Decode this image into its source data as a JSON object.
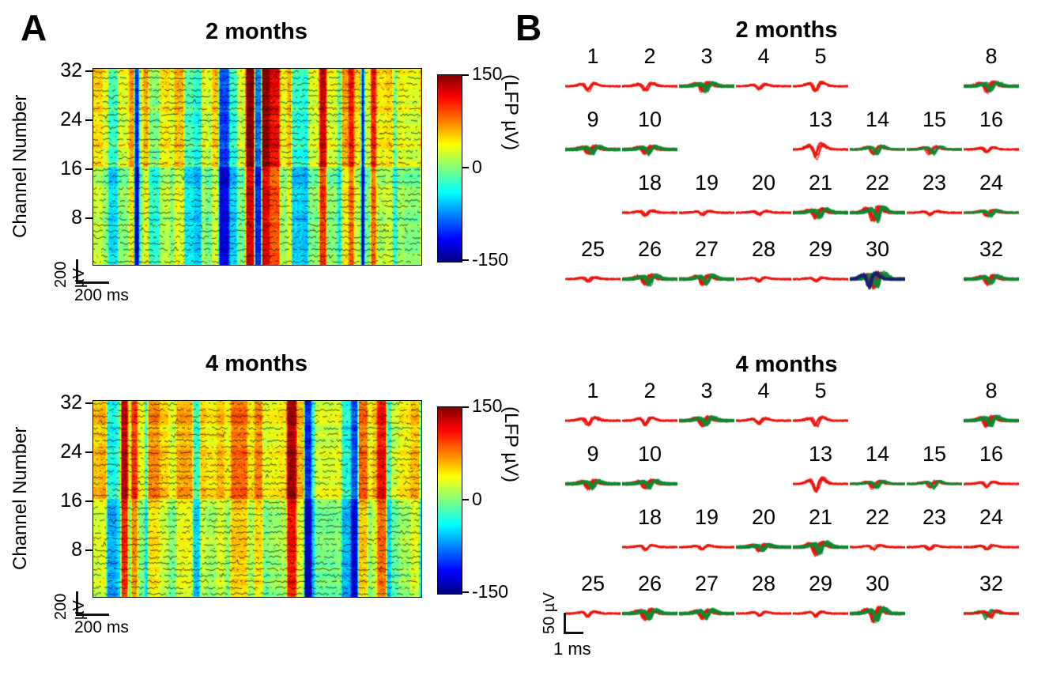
{
  "figure": {
    "panelA": {
      "label": "A",
      "ylabel": "Channel Number",
      "colorbar_label": "(LFP µV)",
      "scale_v": "200 µV",
      "scale_h": "200 ms",
      "plots": [
        {
          "title": "2 months",
          "yticks": [
            "32",
            "24",
            "16",
            "8"
          ],
          "colorbar_ticks": [
            "150",
            "0",
            "-150"
          ],
          "seed": 20
        },
        {
          "title": "4 months",
          "yticks": [
            "32",
            "24",
            "16",
            "8"
          ],
          "colorbar_ticks": [
            "150",
            "0",
            "-150"
          ],
          "seed": 77
        }
      ]
    },
    "panelB": {
      "label": "B",
      "scale_v": "50 µV",
      "scale_h": "1 ms",
      "groups": [
        {
          "title": "2 months",
          "rows": [
            [
              {
                "n": "1",
                "c": [
                  "red"
                ],
                "a": 0.95
              },
              {
                "n": "2",
                "c": [
                  "red"
                ],
                "a": 0.95
              },
              {
                "n": "3",
                "c": [
                  "red",
                  "green"
                ],
                "a": 1.0,
                "d": true
              },
              {
                "n": "4",
                "c": [
                  "red"
                ],
                "a": 0.7
              },
              {
                "n": "5",
                "c": [
                  "red"
                ],
                "a": 1.05
              },
              null,
              null,
              {
                "n": "8",
                "c": [
                  "red",
                  "green"
                ],
                "a": 1.1,
                "d": true
              }
            ],
            [
              {
                "n": "9",
                "c": [
                  "red",
                  "green"
                ],
                "a": 0.9,
                "d": true
              },
              {
                "n": "10",
                "c": [
                  "red",
                  "green"
                ],
                "a": 0.9,
                "d": true
              },
              null,
              null,
              {
                "n": "13",
                "c": [
                  "red"
                ],
                "a": 1.6
              },
              {
                "n": "14",
                "c": [
                  "red",
                  "green"
                ],
                "a": 1.0
              },
              {
                "n": "15",
                "c": [
                  "red",
                  "green"
                ],
                "a": 0.9
              },
              {
                "n": "16",
                "c": [
                  "red"
                ],
                "a": 0.6
              }
            ],
            [
              null,
              {
                "n": "18",
                "c": [
                  "red"
                ],
                "a": 0.6
              },
              {
                "n": "19",
                "c": [
                  "red"
                ],
                "a": 0.5
              },
              {
                "n": "20",
                "c": [
                  "red"
                ],
                "a": 0.5
              },
              {
                "n": "21",
                "c": [
                  "red",
                  "green"
                ],
                "a": 1.0,
                "d": true
              },
              {
                "n": "22",
                "c": [
                  "red",
                  "green"
                ],
                "a": 1.6,
                "d": true
              },
              {
                "n": "23",
                "c": [
                  "red"
                ],
                "a": 0.5
              },
              {
                "n": "24",
                "c": [
                  "red",
                  "green"
                ],
                "a": 0.8
              }
            ],
            [
              {
                "n": "25",
                "c": [
                  "red"
                ],
                "a": 0.5
              },
              {
                "n": "26",
                "c": [
                  "red",
                  "green"
                ],
                "a": 1.2,
                "d": true
              },
              {
                "n": "27",
                "c": [
                  "red",
                  "green"
                ],
                "a": 1.2,
                "d": true
              },
              {
                "n": "28",
                "c": [
                  "red"
                ],
                "a": 0.5
              },
              {
                "n": "29",
                "c": [
                  "red"
                ],
                "a": 0.5
              },
              {
                "n": "30",
                "c": [
                  "red",
                  "green",
                  "navy"
                ],
                "a": 1.7,
                "d": true
              },
              null,
              {
                "n": "32",
                "c": [
                  "red",
                  "green"
                ],
                "a": 1.0,
                "d": true
              }
            ]
          ]
        },
        {
          "title": "4 months",
          "rows": [
            [
              {
                "n": "1",
                "c": [
                  "red"
                ],
                "a": 0.95
              },
              {
                "n": "2",
                "c": [
                  "red"
                ],
                "a": 0.95
              },
              {
                "n": "3",
                "c": [
                  "red",
                  "green"
                ],
                "a": 1.0,
                "d": true
              },
              {
                "n": "4",
                "c": [
                  "red"
                ],
                "a": 0.7
              },
              {
                "n": "5",
                "c": [
                  "red"
                ],
                "a": 1.05
              },
              null,
              null,
              {
                "n": "8",
                "c": [
                  "red",
                  "green"
                ],
                "a": 1.15,
                "d": true
              }
            ],
            [
              {
                "n": "9",
                "c": [
                  "red",
                  "green"
                ],
                "a": 1.0,
                "d": true
              },
              {
                "n": "10",
                "c": [
                  "red",
                  "green"
                ],
                "a": 1.0,
                "d": true
              },
              null,
              null,
              {
                "n": "13",
                "c": [
                  "red"
                ],
                "a": 1.6
              },
              {
                "n": "14",
                "c": [
                  "red",
                  "green"
                ],
                "a": 0.9
              },
              {
                "n": "15",
                "c": [
                  "red",
                  "green"
                ],
                "a": 0.8
              },
              {
                "n": "16",
                "c": [
                  "red"
                ],
                "a": 0.6
              }
            ],
            [
              null,
              {
                "n": "18",
                "c": [
                  "red"
                ],
                "a": 0.6
              },
              {
                "n": "19",
                "c": [
                  "red"
                ],
                "a": 0.5
              },
              {
                "n": "20",
                "c": [
                  "red",
                  "green"
                ],
                "a": 0.7,
                "d": true
              },
              {
                "n": "21",
                "c": [
                  "red",
                  "green"
                ],
                "a": 1.4,
                "d": true
              },
              {
                "n": "22",
                "c": [
                  "red"
                ],
                "a": 0.6
              },
              {
                "n": "23",
                "c": [
                  "red"
                ],
                "a": 0.5
              },
              {
                "n": "24",
                "c": [
                  "red"
                ],
                "a": 0.6
              }
            ],
            [
              {
                "n": "25",
                "c": [
                  "red"
                ],
                "a": 0.6
              },
              {
                "n": "26",
                "c": [
                  "red",
                  "green"
                ],
                "a": 1.1,
                "d": true
              },
              {
                "n": "27",
                "c": [
                  "red",
                  "green"
                ],
                "a": 1.1,
                "d": true
              },
              {
                "n": "28",
                "c": [
                  "red"
                ],
                "a": 0.45
              },
              {
                "n": "29",
                "c": [
                  "red"
                ],
                "a": 0.6
              },
              {
                "n": "30",
                "c": [
                  "red",
                  "green"
                ],
                "a": 1.6,
                "d": true
              },
              null,
              {
                "n": "32",
                "c": [
                  "green",
                  "red"
                ],
                "a": 0.9
              }
            ]
          ]
        }
      ]
    },
    "colors": {
      "red": "#ee1209",
      "green": "#0f8a32",
      "navy": "#17246d"
    }
  },
  "chart_data": [
    {
      "type": "heatmap",
      "title": "2 months",
      "ylabel": "Channel Number",
      "yticks": [
        32,
        24,
        16,
        8
      ],
      "color_scale": {
        "label": "(LFP µV)",
        "min": -150,
        "max": 150,
        "colormap": "jet"
      },
      "x_scalebar": "200 ms",
      "y_scalebar": "200 µV"
    },
    {
      "type": "heatmap",
      "title": "4 months",
      "ylabel": "Channel Number",
      "yticks": [
        32,
        24,
        16,
        8
      ],
      "color_scale": {
        "label": "(LFP µV)",
        "min": -150,
        "max": 150,
        "colormap": "jet"
      },
      "x_scalebar": "200 ms",
      "y_scalebar": "200 µV"
    },
    {
      "type": "line",
      "title": "2 months",
      "channels": [
        1,
        2,
        3,
        4,
        5,
        8,
        9,
        10,
        13,
        14,
        15,
        16,
        18,
        19,
        20,
        21,
        22,
        23,
        24,
        25,
        26,
        27,
        28,
        29,
        30,
        32
      ],
      "x_scalebar": "1 ms",
      "y_scalebar": "50 µV"
    },
    {
      "type": "line",
      "title": "4 months",
      "channels": [
        1,
        2,
        3,
        4,
        5,
        8,
        9,
        10,
        13,
        14,
        15,
        16,
        18,
        19,
        20,
        21,
        22,
        23,
        24,
        25,
        26,
        27,
        28,
        29,
        30,
        32
      ],
      "x_scalebar": "1 ms",
      "y_scalebar": "50 µV"
    }
  ]
}
